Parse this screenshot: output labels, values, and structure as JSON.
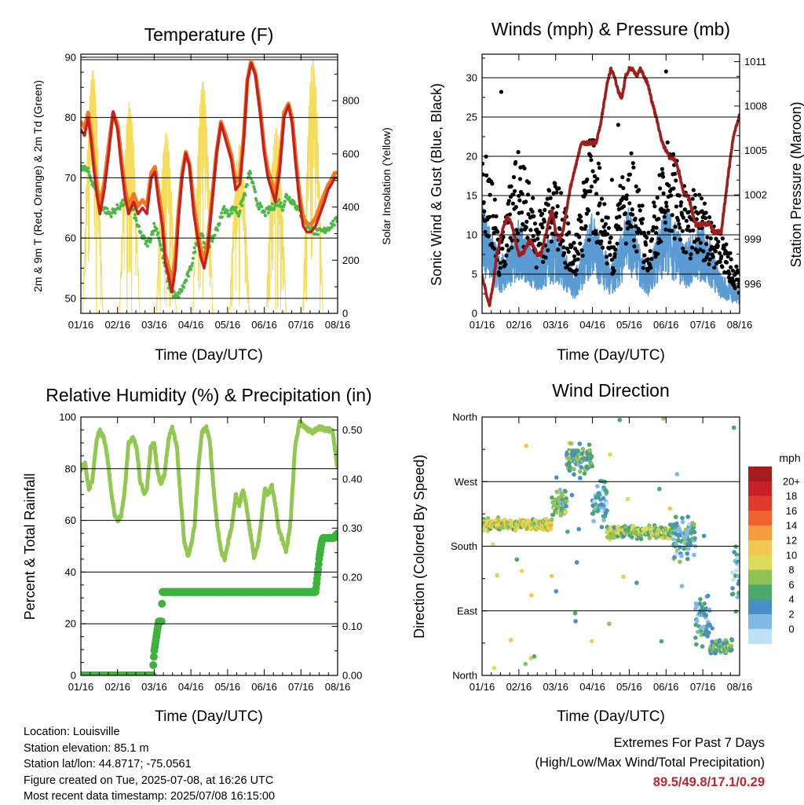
{
  "colors": {
    "temp2m": "#c81e1e",
    "temp9m": "#f07820",
    "dewpoint": "#4cb848",
    "solar": "#f5dc5a",
    "wind": "#5a9bd4",
    "gust": "#000000",
    "pressure": "#a01e1e",
    "rh": "#92c850",
    "precip": "#3cb43c",
    "extremes": "#c1272d"
  },
  "info": {
    "location": "Location: Louisville",
    "elevation": "Station elevation: 85.1 m",
    "latlon": "Station lat/lon: 44.8717; -75.0561",
    "created": "Figure created on Tue, 2025-07-08, at 16:26 UTC",
    "timestamp": "Most recent data timestamp: 2025/07/08 16:15:00"
  },
  "extremes": {
    "line1": "Extremes For Past 7 Days",
    "line2": "(High/Low/Max Wind/Total Precipitation)",
    "values": "89.5/49.8/17.1/0.29"
  },
  "chart_data": [
    {
      "id": "temp",
      "type": "line",
      "title": "Temperature (F)",
      "xlabel": "Time (Day/UTC)",
      "ylabel": "2m & 9m T (Red, Orange) & 2m Td (Green)",
      "ylabel_right": "Solar Insolation (Yellow)",
      "x_ticks": [
        "01/16",
        "02/16",
        "03/16",
        "04/16",
        "05/16",
        "06/16",
        "07/16",
        "08/16"
      ],
      "xlim": [
        0,
        7
      ],
      "ylim": [
        47.5,
        90.5
      ],
      "y_ticks": [
        50,
        60,
        70,
        80,
        90
      ],
      "ylim_right": [
        0,
        975
      ],
      "y_ticks_right": [
        0,
        200,
        400,
        600,
        800
      ],
      "series": [
        {
          "key": "t2m",
          "x": [
            0,
            0.1,
            0.2,
            0.28,
            0.36,
            0.44,
            0.52,
            0.64,
            0.76,
            0.88,
            1.0,
            1.1,
            1.2,
            1.3,
            1.44,
            1.56,
            1.68,
            1.8,
            1.92,
            2.02,
            2.12,
            2.22,
            2.3,
            2.38,
            2.48,
            2.58,
            2.66,
            2.76,
            2.86,
            2.96,
            3.08,
            3.18,
            3.26,
            3.36,
            3.46,
            3.58,
            3.7,
            3.82,
            3.96,
            4.1,
            4.22,
            4.34,
            4.44,
            4.54,
            4.64,
            4.76,
            4.9,
            5.0,
            5.1,
            5.2,
            5.3,
            5.42,
            5.54,
            5.66,
            5.76,
            5.86,
            5.96,
            6.06,
            6.16,
            6.28,
            6.4,
            6.52,
            6.64,
            6.74,
            6.84,
            6.92,
            7.0
          ],
          "y": [
            78,
            77,
            80,
            76,
            71,
            67,
            64,
            68,
            74,
            81,
            78,
            72,
            67,
            64,
            66,
            64,
            65,
            64,
            70,
            71,
            66,
            62,
            56,
            54,
            51,
            55,
            63,
            70,
            74,
            72,
            64,
            60,
            57,
            55,
            58,
            66,
            74,
            79,
            76,
            73,
            68,
            69,
            76,
            86,
            89,
            87,
            80,
            74,
            70,
            68,
            66,
            71,
            80,
            82,
            79,
            72,
            66,
            62,
            61,
            61,
            62,
            64,
            66,
            68,
            69,
            70,
            70
          ]
        },
        {
          "key": "t9m",
          "x": [
            0,
            0.1,
            0.2,
            0.28,
            0.36,
            0.44,
            0.52,
            0.64,
            0.76,
            0.88,
            1.0,
            1.1,
            1.2,
            1.3,
            1.44,
            1.56,
            1.68,
            1.8,
            1.92,
            2.02,
            2.12,
            2.22,
            2.3,
            2.38,
            2.48,
            2.58,
            2.66,
            2.76,
            2.86,
            2.96,
            3.08,
            3.18,
            3.26,
            3.36,
            3.46,
            3.58,
            3.7,
            3.82,
            3.96,
            4.1,
            4.22,
            4.34,
            4.44,
            4.54,
            4.64,
            4.76,
            4.9,
            5.0,
            5.1,
            5.2,
            5.3,
            5.42,
            5.54,
            5.66,
            5.76,
            5.86,
            5.96,
            6.06,
            6.16,
            6.28,
            6.4,
            6.52,
            6.64,
            6.74,
            6.84,
            6.92,
            7.0
          ],
          "y": [
            78.5,
            77.5,
            80,
            76.5,
            71.5,
            67.5,
            64.5,
            68.5,
            74.5,
            80,
            78,
            72.5,
            67.5,
            64.5,
            66.5,
            64.5,
            65.5,
            64.5,
            70,
            71,
            66.5,
            62.5,
            56.5,
            54.5,
            52,
            56,
            63.5,
            70,
            73.5,
            71.5,
            64.5,
            60.5,
            57.5,
            55.5,
            58.5,
            66,
            73.5,
            78.5,
            76,
            73,
            68.5,
            69.5,
            76,
            85.5,
            88.5,
            86.5,
            80,
            74,
            70.5,
            68.5,
            66.5,
            71.5,
            80,
            81.5,
            79,
            72.5,
            66.5,
            62.5,
            61.5,
            61.5,
            62.5,
            64.5,
            66.5,
            68,
            69,
            70,
            70
          ]
        },
        {
          "key": "td",
          "x": [
            0,
            0.2,
            0.4,
            0.6,
            0.8,
            1.0,
            1.2,
            1.4,
            1.5,
            1.6,
            1.8,
            1.9,
            2.0,
            2.1,
            2.2,
            2.3,
            2.4,
            2.5,
            2.6,
            2.8,
            3.0,
            3.1,
            3.2,
            3.3,
            3.4,
            3.6,
            3.8,
            3.9,
            4.0,
            4.2,
            4.3,
            4.4,
            4.5,
            4.6,
            4.8,
            5.0,
            5.2,
            5.4,
            5.5,
            5.6,
            5.8,
            6.0,
            6.2,
            6.4,
            6.6,
            6.8,
            7.0
          ],
          "y": [
            72,
            71,
            68,
            65,
            64,
            65,
            66,
            65,
            63,
            61,
            59,
            60,
            62,
            61,
            58,
            55,
            52,
            51,
            50,
            52,
            55,
            58,
            60,
            61,
            58,
            60,
            63,
            65,
            64,
            65,
            64,
            66,
            68,
            71,
            66,
            64,
            65,
            66,
            65,
            67,
            66,
            64,
            62,
            61,
            61,
            62,
            63
          ]
        }
      ]
    },
    {
      "id": "wind",
      "type": "scatter",
      "title": "Winds (mph) & Pressure (mb)",
      "xlabel": "Time (Day/UTC)",
      "ylabel": "Sonic Wind & Gust (Blue, Black)",
      "ylabel_right": "Station Pressure (Maroon)",
      "x_ticks": [
        "01/16",
        "02/16",
        "03/16",
        "04/16",
        "05/16",
        "06/16",
        "07/16",
        "08/16"
      ],
      "xlim": [
        0,
        7
      ],
      "ylim": [
        0,
        33
      ],
      "y_ticks": [
        0,
        5,
        10,
        15,
        20,
        25,
        30
      ],
      "ylim_right": [
        994,
        1011.5
      ],
      "y_ticks_right": [
        996,
        999,
        1002,
        1005,
        1008,
        1011
      ],
      "pressure": {
        "x": [
          0,
          0.1,
          0.2,
          0.3,
          0.4,
          0.5,
          0.6,
          0.7,
          0.8,
          0.9,
          1.0,
          1.1,
          1.2,
          1.3,
          1.4,
          1.5,
          1.6,
          1.7,
          1.8,
          1.9,
          2.0,
          2.1,
          2.2,
          2.3,
          2.4,
          2.5,
          2.6,
          2.7,
          2.8,
          2.9,
          3.0,
          3.1,
          3.2,
          3.3,
          3.4,
          3.5,
          3.6,
          3.7,
          3.8,
          3.9,
          4.0,
          4.1,
          4.2,
          4.3,
          4.4,
          4.5,
          4.6,
          4.7,
          4.8,
          4.9,
          5.0,
          5.1,
          5.2,
          5.3,
          5.4,
          5.5,
          5.6,
          5.7,
          5.8,
          5.9,
          6.0,
          6.1,
          6.2,
          6.3,
          6.4,
          6.5,
          6.6,
          6.7,
          6.8,
          6.9,
          7.0
        ],
        "y": [
          996.5,
          995.5,
          994.5,
          996,
          998,
          999,
          1000,
          1000.5,
          1000,
          999,
          998,
          998,
          998.5,
          999,
          998.5,
          998,
          998,
          999,
          1000,
          1001,
          999.5,
          999,
          999.5,
          1001,
          1002.5,
          1003.5,
          1004.5,
          1005.5,
          1005.5,
          1005.5,
          1005.5,
          1005.5,
          1006.5,
          1008,
          1009.5,
          1010.5,
          1010,
          1009,
          1008.5,
          1010,
          1010.5,
          1010.5,
          1010,
          1010.5,
          1010,
          1009.5,
          1008.5,
          1007.5,
          1006.5,
          1005.5,
          1005,
          1004.5,
          1004.5,
          1004,
          1003,
          1002,
          1002,
          1001,
          1000,
          1000,
          1000,
          1000,
          1000,
          999.5,
          999.5,
          999.5,
          1001.5,
          1003.5,
          1005.5,
          1006.5,
          1007.5
        ]
      },
      "wind_envelope": {
        "x": [
          0,
          0.5,
          1.0,
          1.5,
          2.0,
          2.5,
          3.0,
          3.5,
          4.0,
          4.5,
          5.0,
          5.5,
          6.0,
          6.5,
          7.0
        ],
        "y": [
          14,
          7,
          12,
          8,
          11,
          5,
          13,
          6,
          14,
          6,
          14,
          9,
          12,
          5,
          3
        ]
      },
      "gust_envelope": {
        "x": [
          0,
          0.5,
          1.0,
          1.5,
          2.0,
          2.5,
          3.0,
          3.5,
          4.0,
          4.5,
          5.0,
          5.5,
          6.0,
          6.5,
          7.0
        ],
        "y": [
          23,
          10,
          21,
          12,
          17,
          9,
          23,
          10,
          21,
          10,
          22,
          16,
          14,
          10,
          5
        ]
      }
    },
    {
      "id": "rh",
      "type": "line",
      "title": "Relative Humidity (%) & Precipitation (in)",
      "xlabel": "Time (Day/UTC)",
      "ylabel": "Percent & Total Rainfall",
      "x_ticks": [
        "01/16",
        "02/16",
        "03/16",
        "04/16",
        "05/16",
        "06/16",
        "07/16",
        "08/16"
      ],
      "xlim": [
        0,
        7
      ],
      "ylim": [
        0,
        100
      ],
      "y_ticks": [
        0,
        20,
        40,
        60,
        80,
        100
      ],
      "ylim_right": [
        0,
        0.5263
      ],
      "y_ticks_right": [
        "0.00",
        "0.10",
        "0.20",
        "0.30",
        "0.40",
        "0.50"
      ],
      "series": [
        {
          "key": "rh",
          "x": [
            0,
            0.12,
            0.22,
            0.32,
            0.42,
            0.5,
            0.62,
            0.72,
            0.82,
            0.92,
            1.0,
            1.1,
            1.2,
            1.3,
            1.42,
            1.52,
            1.62,
            1.72,
            1.8,
            1.9,
            2.0,
            2.08,
            2.18,
            2.28,
            2.4,
            2.5,
            2.62,
            2.72,
            2.82,
            2.92,
            3.0,
            3.1,
            3.2,
            3.3,
            3.42,
            3.52,
            3.62,
            3.72,
            3.82,
            3.92,
            4.02,
            4.12,
            4.22,
            4.32,
            4.42,
            4.52,
            4.62,
            4.72,
            4.82,
            4.92,
            5.02,
            5.1,
            5.2,
            5.3,
            5.4,
            5.5,
            5.6,
            5.72,
            5.84,
            5.96,
            6.1,
            6.3,
            6.5,
            6.7,
            6.86,
            7.0
          ],
          "y": [
            80,
            82,
            72,
            76,
            90,
            95,
            92,
            85,
            72,
            62,
            60,
            62,
            72,
            90,
            92,
            88,
            75,
            70,
            72,
            88,
            90,
            80,
            74,
            78,
            92,
            96,
            88,
            68,
            52,
            46,
            50,
            58,
            80,
            94,
            96,
            90,
            72,
            58,
            48,
            45,
            52,
            58,
            70,
            66,
            72,
            65,
            55,
            46,
            50,
            60,
            72,
            70,
            74,
            66,
            56,
            52,
            48,
            60,
            88,
            98,
            96,
            94,
            96,
            95,
            95,
            80
          ]
        },
        {
          "key": "precip",
          "x": [
            0,
            1.96,
            1.98,
            2.0,
            2.04,
            2.08,
            2.12,
            2.2,
            2.22,
            2.3,
            2.5,
            3.0,
            4.0,
            5.0,
            6.0,
            6.4,
            6.46,
            6.5,
            6.56,
            6.6,
            6.7,
            6.9,
            7.0
          ],
          "y": [
            0,
            0,
            0.03,
            0.05,
            0.07,
            0.09,
            0.11,
            0.11,
            0.17,
            0.17,
            0.17,
            0.17,
            0.17,
            0.17,
            0.17,
            0.17,
            0.21,
            0.24,
            0.27,
            0.28,
            0.28,
            0.28,
            0.29
          ]
        }
      ]
    },
    {
      "id": "dir",
      "type": "scatter",
      "title": "Wind Direction",
      "xlabel": "Time (Day/UTC)",
      "ylabel": "Direction (Colored By Speed)",
      "x_ticks": [
        "01/16",
        "02/16",
        "03/16",
        "04/16",
        "05/16",
        "06/16",
        "07/16",
        "08/16"
      ],
      "xlim": [
        0,
        7
      ],
      "ylim": [
        0,
        360
      ],
      "y_ticks": [
        "North",
        "East",
        "South",
        "West",
        "North"
      ],
      "legend_title": "mph",
      "legend_labels": [
        "20+",
        "18",
        "16",
        "14",
        "12",
        "10",
        "8",
        "6",
        "4",
        "2",
        "0"
      ],
      "legend_colors": [
        "#a51c1c",
        "#c8202a",
        "#e03a2c",
        "#f0622e",
        "#f79c3c",
        "#f2c84e",
        "#dcdc5a",
        "#8fc455",
        "#4da86c",
        "#4a8ec8",
        "#7fb9e4",
        "#bfe1f5"
      ],
      "clusters": [
        {
          "t0": 0.0,
          "t1": 1.9,
          "deg": 210,
          "spread": 10,
          "speed": 10
        },
        {
          "t0": 1.9,
          "t1": 2.3,
          "deg": 240,
          "spread": 30,
          "speed": 6
        },
        {
          "t0": 2.3,
          "t1": 3.0,
          "deg": 300,
          "spread": 30,
          "speed": 6
        },
        {
          "t0": 3.0,
          "t1": 3.4,
          "deg": 240,
          "spread": 40,
          "speed": 3
        },
        {
          "t0": 3.4,
          "t1": 5.2,
          "deg": 200,
          "spread": 12,
          "speed": 8
        },
        {
          "t0": 5.2,
          "t1": 5.8,
          "deg": 190,
          "spread": 40,
          "speed": 4
        },
        {
          "t0": 5.8,
          "t1": 6.2,
          "deg": 80,
          "spread": 50,
          "speed": 4
        },
        {
          "t0": 6.2,
          "t1": 6.8,
          "deg": 40,
          "spread": 14,
          "speed": 6
        },
        {
          "t0": 6.8,
          "t1": 7.0,
          "deg": 140,
          "spread": 60,
          "speed": 3
        }
      ]
    }
  ]
}
